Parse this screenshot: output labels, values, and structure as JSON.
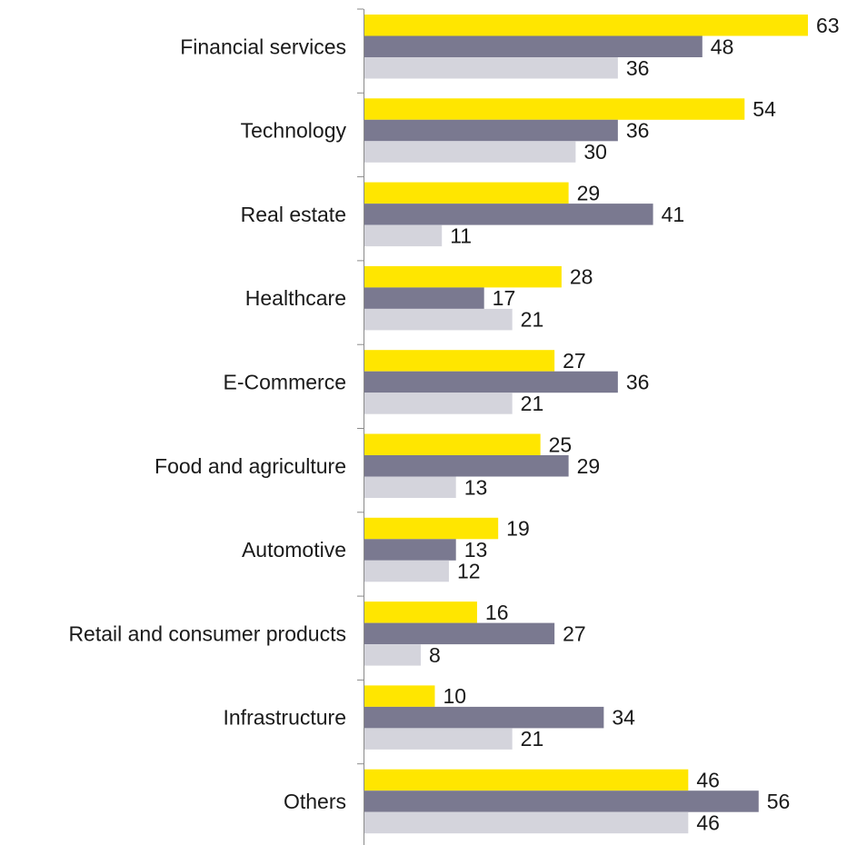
{
  "chart_data": {
    "type": "bar",
    "orientation": "horizontal",
    "categories": [
      "Financial services",
      "Technology",
      "Real estate",
      "Healthcare",
      "E-Commerce",
      "Food and agriculture",
      "Automotive",
      "Retail and consumer products",
      "Infrastructure",
      "Others"
    ],
    "series": [
      {
        "values": [
          63,
          54,
          29,
          28,
          27,
          25,
          19,
          16,
          10,
          46
        ],
        "color": "#FFE600"
      },
      {
        "values": [
          48,
          36,
          41,
          17,
          36,
          29,
          13,
          27,
          34,
          56
        ],
        "color": "#7A7990"
      },
      {
        "values": [
          36,
          30,
          11,
          21,
          21,
          13,
          12,
          8,
          21,
          46
        ],
        "color": "#D4D4DC"
      }
    ],
    "xlim": [
      0,
      70
    ],
    "grid": false,
    "legend": "none",
    "data_labels": true
  }
}
